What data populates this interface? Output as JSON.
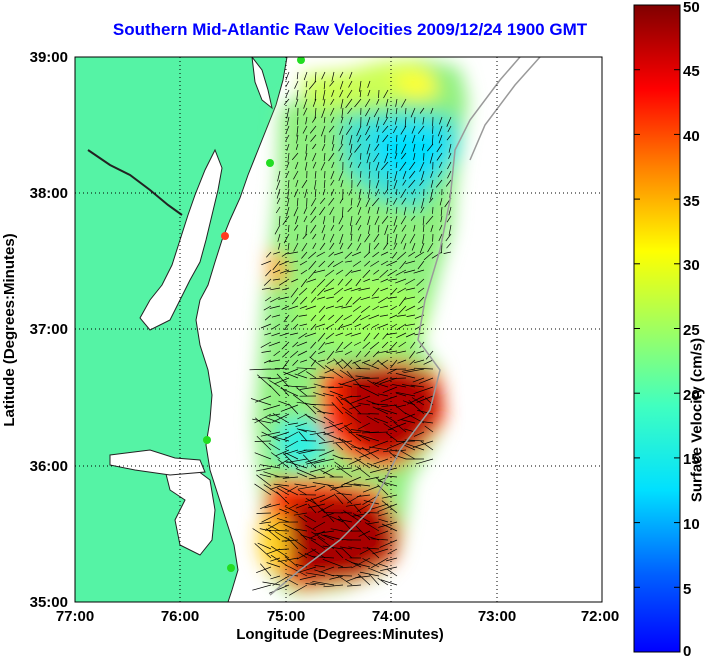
{
  "title": "Southern Mid-Atlantic Raw Velocities 2009/12/24 1900 GMT",
  "x_axis": {
    "label": "Longitude (Degrees:Minutes)",
    "ticks": [
      "77:00",
      "76:00",
      "75:00",
      "74:00",
      "73:00",
      "72:00"
    ]
  },
  "y_axis": {
    "label": "Latitude (Degrees:Minutes)",
    "ticks": [
      "39:00",
      "38:00",
      "37:00",
      "36:00",
      "35:00"
    ]
  },
  "colorbar": {
    "label": "Surface Velocity (cm/s)",
    "ticks": [
      "50",
      "45",
      "40",
      "35",
      "30",
      "25",
      "20",
      "15",
      "10",
      "5",
      "0"
    ],
    "range": [
      0,
      50
    ],
    "colormap": "jet"
  },
  "colors": {
    "land": "#55f3a5",
    "water": "#ffffff",
    "title": "#0000ff",
    "station": "#22dd22",
    "station_offline": "#ff3b1f"
  },
  "extent": {
    "lon": [
      -77,
      -72
    ],
    "lat": [
      35,
      39
    ]
  },
  "grid": "dotted"
}
